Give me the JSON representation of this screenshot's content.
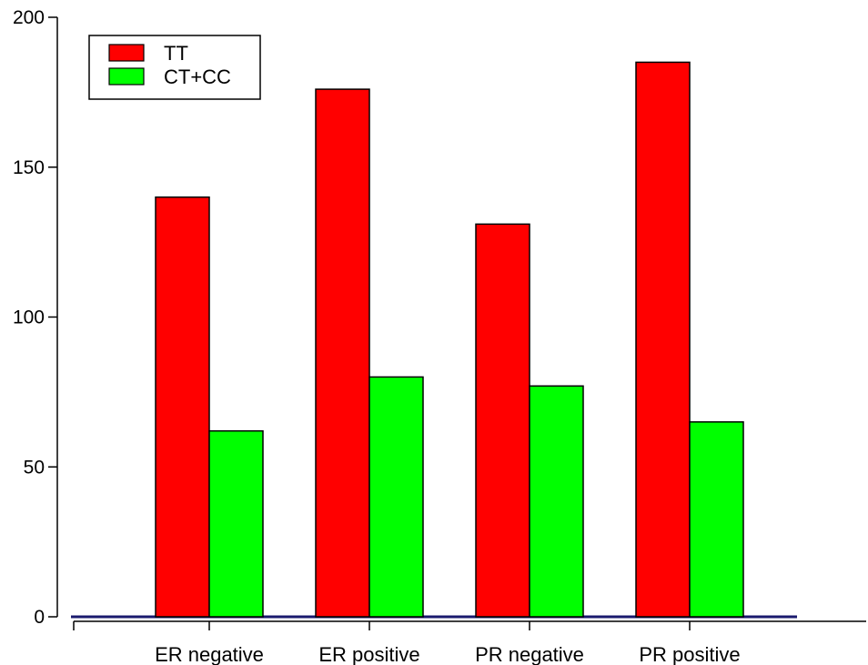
{
  "chart_data": {
    "type": "bar",
    "categories": [
      "ER negative",
      "ER positive",
      "PR negative",
      "PR positive"
    ],
    "series": [
      {
        "name": "TT",
        "values": [
          140,
          176,
          131,
          185
        ],
        "color": "#ff0000"
      },
      {
        "name": "CT+CC",
        "values": [
          62,
          80,
          77,
          65
        ],
        "color": "#00ff00"
      }
    ],
    "yticks": [
      0,
      50,
      100,
      150,
      200
    ],
    "ylim": [
      0,
      200
    ],
    "grid": false,
    "legend_position": "top-left"
  }
}
